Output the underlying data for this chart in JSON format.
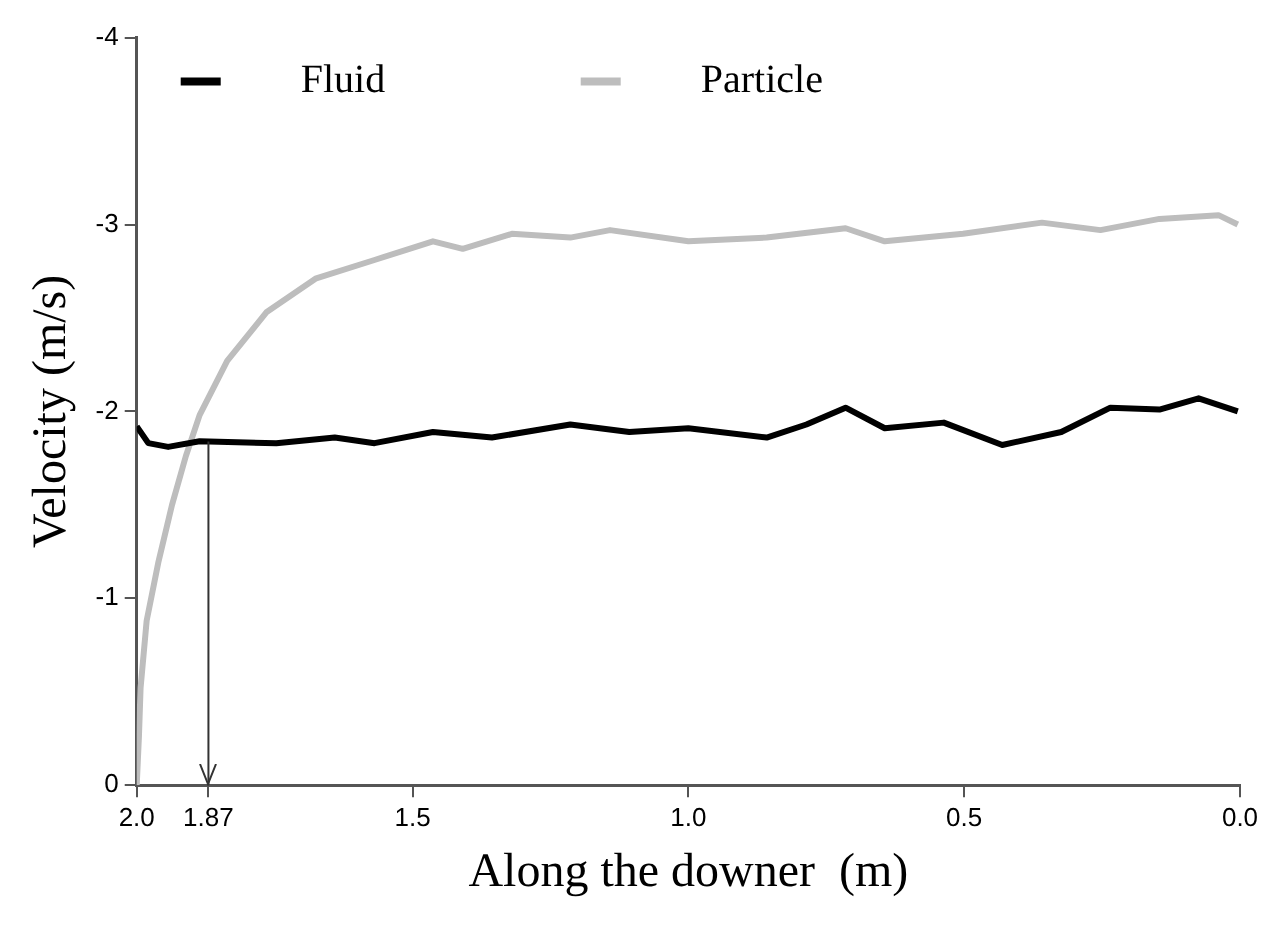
{
  "chart_data": {
    "type": "line",
    "xlabel": "Along the downer  (m)",
    "ylabel": "Velocity (m/s)",
    "xlim": [
      2,
      0
    ],
    "xticks": [
      {
        "value": 2,
        "label": "2.0"
      },
      1.87,
      1.5,
      {
        "value": 1,
        "label": "1.0"
      },
      0.5,
      {
        "value": 0,
        "label": "0.0"
      }
    ],
    "ylim": [
      0,
      -4
    ],
    "yticks": [
      0,
      -1,
      -2,
      -3,
      -4
    ],
    "grid": false,
    "legend": "top left",
    "marker": "none",
    "line_style": "solid",
    "ref_lines": [
      {
        "axis": "x",
        "value": 1.87
      }
    ],
    "series": [
      {
        "name": "Fluid",
        "color": "#000000",
        "x": [
          2.0,
          1.979,
          1.943,
          1.886,
          1.747,
          1.641,
          1.569,
          1.463,
          1.356,
          1.214,
          1.107,
          1.0,
          0.858,
          0.786,
          0.715,
          0.644,
          0.537,
          0.431,
          0.324,
          0.235,
          0.146,
          0.075,
          0.004
        ],
        "values": [
          -1.92,
          -1.83,
          -1.81,
          -1.84,
          -1.83,
          -1.86,
          -1.83,
          -1.89,
          -1.86,
          -1.93,
          -1.89,
          -1.91,
          -1.86,
          -1.93,
          -2.02,
          -1.91,
          -1.94,
          -1.82,
          -1.89,
          -2.02,
          -2.01,
          -2.07,
          -2.0
        ]
      },
      {
        "name": "Particle",
        "color": "#bdbdbd",
        "x": [
          2.0,
          1.996,
          1.993,
          1.982,
          1.961,
          1.936,
          1.911,
          1.886,
          1.836,
          1.765,
          1.676,
          1.569,
          1.463,
          1.409,
          1.32,
          1.214,
          1.142,
          1.0,
          0.858,
          0.715,
          0.644,
          0.502,
          0.359,
          0.253,
          0.146,
          0.039,
          0.004
        ],
        "values": [
          0,
          -0.26,
          -0.52,
          -0.88,
          -1.19,
          -1.5,
          -1.76,
          -1.98,
          -2.27,
          -2.53,
          -2.71,
          -2.81,
          -2.91,
          -2.87,
          -2.95,
          -2.93,
          -2.97,
          -2.91,
          -2.93,
          -2.98,
          -2.91,
          -2.95,
          -3.01,
          -2.97,
          -3.03,
          -3.05,
          -3.0
        ]
      }
    ]
  }
}
